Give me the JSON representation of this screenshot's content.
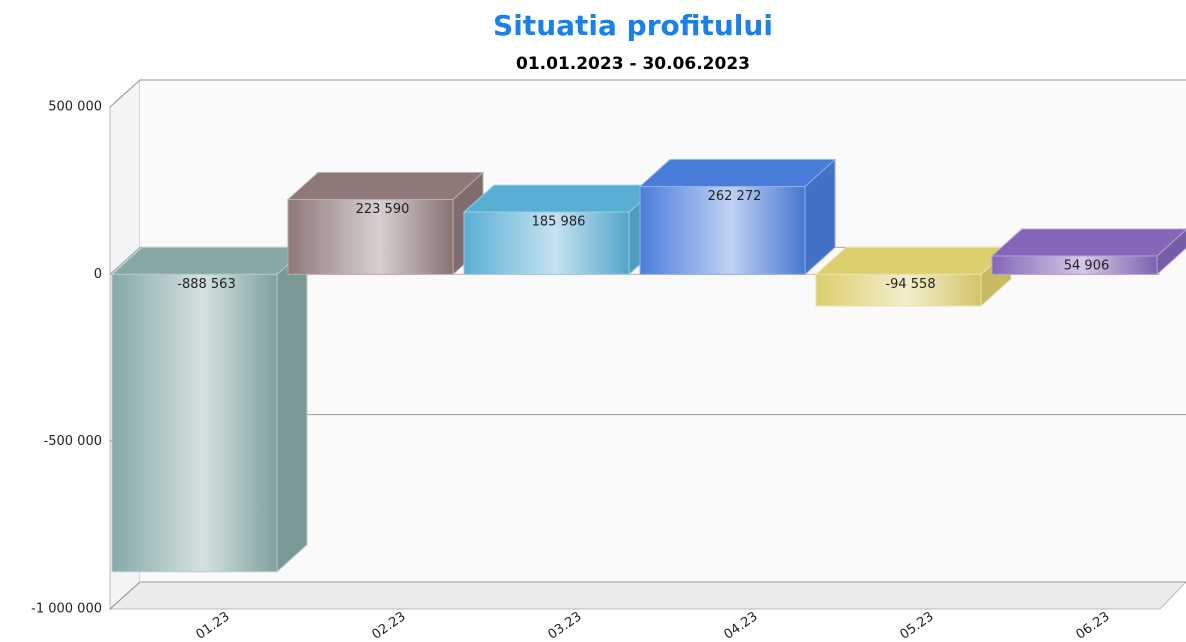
{
  "chart_data": {
    "type": "bar",
    "title": "Situatia profitului",
    "subtitle": "01.01.2023 - 30.06.2023",
    "categories": [
      "01.23",
      "02.23",
      "03.23",
      "04.23",
      "05.23",
      "06.23"
    ],
    "values": [
      -888563,
      223590,
      185986,
      262272,
      -94558,
      54906
    ],
    "value_labels": [
      "-888 563",
      "223 590",
      "185 986",
      "262 272",
      "-94 558",
      "54 906"
    ],
    "colors": [
      "#86a9a7",
      "#8e7878",
      "#58aed3",
      "#4a7ddb",
      "#dccf6e",
      "#8466b8"
    ],
    "ylim": [
      -1000000,
      500000
    ],
    "yticks": [
      {
        "value": 500000,
        "label": "500 000"
      },
      0,
      {
        "value": -500000,
        "label": "-500 000"
      },
      {
        "value": -1000000,
        "label": "-1 000 000"
      }
    ],
    "grid": true
  }
}
